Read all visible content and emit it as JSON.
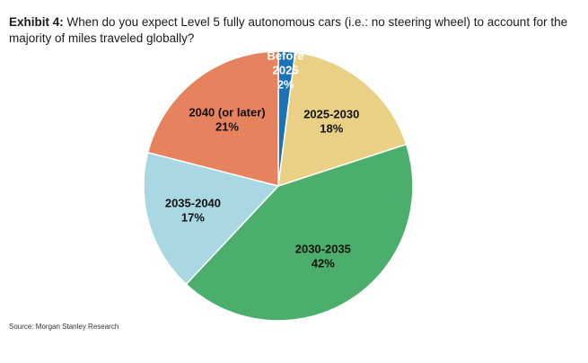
{
  "header": {
    "exhibit": "Exhibit 4:",
    "question": "When do you expect Level 5 fully autonomous cars (i.e.: no steering wheel) to account for the majority of miles traveled globally?"
  },
  "footer": {
    "source": "Source: Morgan Stanley Research"
  },
  "chart_data": {
    "type": "pie",
    "title": "When do you expect Level 5 fully autonomous cars (i.e.: no steering wheel) to account for the majority of miles traveled globally?",
    "categories": [
      "Before 2025",
      "2025-2030",
      "2030-2035",
      "2035-2040",
      "2040 (or later)"
    ],
    "values": [
      2,
      18,
      42,
      17,
      21
    ],
    "value_labels": [
      "2%",
      "18%",
      "42%",
      "17%",
      "21%"
    ],
    "colors": [
      "#1a72b8",
      "#ead084",
      "#4cae6c",
      "#a9d8e3",
      "#e7825e"
    ],
    "label_colors": [
      "#ffffff",
      "#111111",
      "#111111",
      "#111111",
      "#111111"
    ],
    "start": "12 o'clock",
    "direction": "clockwise"
  }
}
